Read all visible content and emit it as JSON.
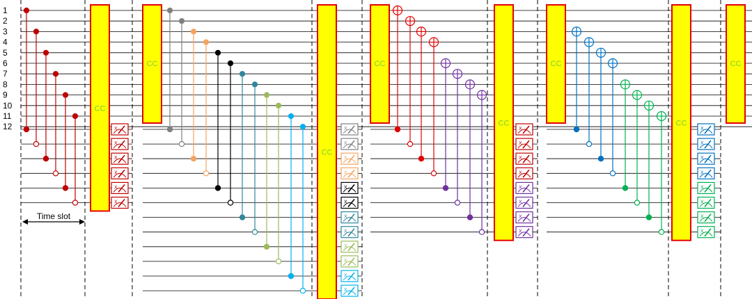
{
  "qubit_labels": [
    "1",
    "2",
    "3",
    "4",
    "5",
    "6",
    "7",
    "8",
    "9",
    "10",
    "11",
    "12"
  ],
  "cc_label": "CC",
  "time_slot_label": "Time slot",
  "colors": {
    "block_fill": "#ffff00",
    "block_stroke": "#e30000",
    "cc_text": "#7ccc3c",
    "wire": "#000000",
    "divider": "#000000"
  },
  "sections": [
    {
      "name": "section-1",
      "ancilla_count": 6,
      "gates": [
        {
          "q": 1,
          "a": 1,
          "color": "#c00000"
        },
        {
          "q": 3,
          "a": 2,
          "color": "#c00000"
        },
        {
          "q": 5,
          "a": 3,
          "color": "#c00000"
        },
        {
          "q": 7,
          "a": 4,
          "color": "#c00000"
        },
        {
          "q": 9,
          "a": 5,
          "color": "#c00000"
        },
        {
          "q": 11,
          "a": 6,
          "color": "#c00000"
        }
      ],
      "meter_colors": [
        "#c00000",
        "#c00000",
        "#c00000",
        "#c00000",
        "#c00000",
        "#c00000"
      ]
    },
    {
      "name": "section-2",
      "ancilla_count": 12,
      "gates": [
        {
          "q": 1,
          "a": 1,
          "color": "#808080"
        },
        {
          "q": 2,
          "a": 2,
          "color": "#808080"
        },
        {
          "q": 3,
          "a": 3,
          "color": "#f4a460"
        },
        {
          "q": 4,
          "a": 4,
          "color": "#f4a460"
        },
        {
          "q": 5,
          "a": 5,
          "color": "#000000"
        },
        {
          "q": 6,
          "a": 6,
          "color": "#000000"
        },
        {
          "q": 7,
          "a": 7,
          "color": "#31859c"
        },
        {
          "q": 8,
          "a": 8,
          "color": "#31859c"
        },
        {
          "q": 9,
          "a": 9,
          "color": "#9bbb59"
        },
        {
          "q": 10,
          "a": 10,
          "color": "#9bbb59"
        },
        {
          "q": 11,
          "a": 11,
          "color": "#00b0f0"
        },
        {
          "q": 12,
          "a": 12,
          "color": "#00b0f0"
        }
      ],
      "meter_colors": [
        "#808080",
        "#808080",
        "#f4a460",
        "#f4a460",
        "#000000",
        "#000000",
        "#31859c",
        "#31859c",
        "#9bbb59",
        "#9bbb59",
        "#00b0f0",
        "#00b0f0"
      ]
    },
    {
      "name": "section-3",
      "ancilla_count": 8,
      "gates": [
        {
          "q": 1,
          "a": 1,
          "color": "#e00000"
        },
        {
          "q": 2,
          "a": 2,
          "color": "#e00000"
        },
        {
          "q": 3,
          "a": 3,
          "color": "#e00000"
        },
        {
          "q": 4,
          "a": 4,
          "color": "#e00000"
        },
        {
          "q": 6,
          "a": 5,
          "color": "#7030a0"
        },
        {
          "q": 7,
          "a": 6,
          "color": "#7030a0"
        },
        {
          "q": 8,
          "a": 7,
          "color": "#7030a0"
        },
        {
          "q": 9,
          "a": 8,
          "color": "#7030a0"
        }
      ],
      "meter_colors": [
        "#c00000",
        "#c00000",
        "#c00000",
        "#c00000",
        "#7030a0",
        "#7030a0",
        "#7030a0",
        "#7030a0"
      ]
    },
    {
      "name": "section-4",
      "ancilla_count": 8,
      "gates": [
        {
          "q": 3,
          "a": 1,
          "color": "#0070c0"
        },
        {
          "q": 4,
          "a": 2,
          "color": "#0070c0"
        },
        {
          "q": 5,
          "a": 3,
          "color": "#0070c0"
        },
        {
          "q": 6,
          "a": 4,
          "color": "#0070c0"
        },
        {
          "q": 8,
          "a": 5,
          "color": "#00b050"
        },
        {
          "q": 9,
          "a": 6,
          "color": "#00b050"
        },
        {
          "q": 10,
          "a": 7,
          "color": "#00b050"
        },
        {
          "q": 11,
          "a": 8,
          "color": "#00b050"
        }
      ],
      "meter_colors": [
        "#0070c0",
        "#0070c0",
        "#0070c0",
        "#0070c0",
        "#00b050",
        "#00b050",
        "#00b050",
        "#00b050"
      ]
    }
  ]
}
